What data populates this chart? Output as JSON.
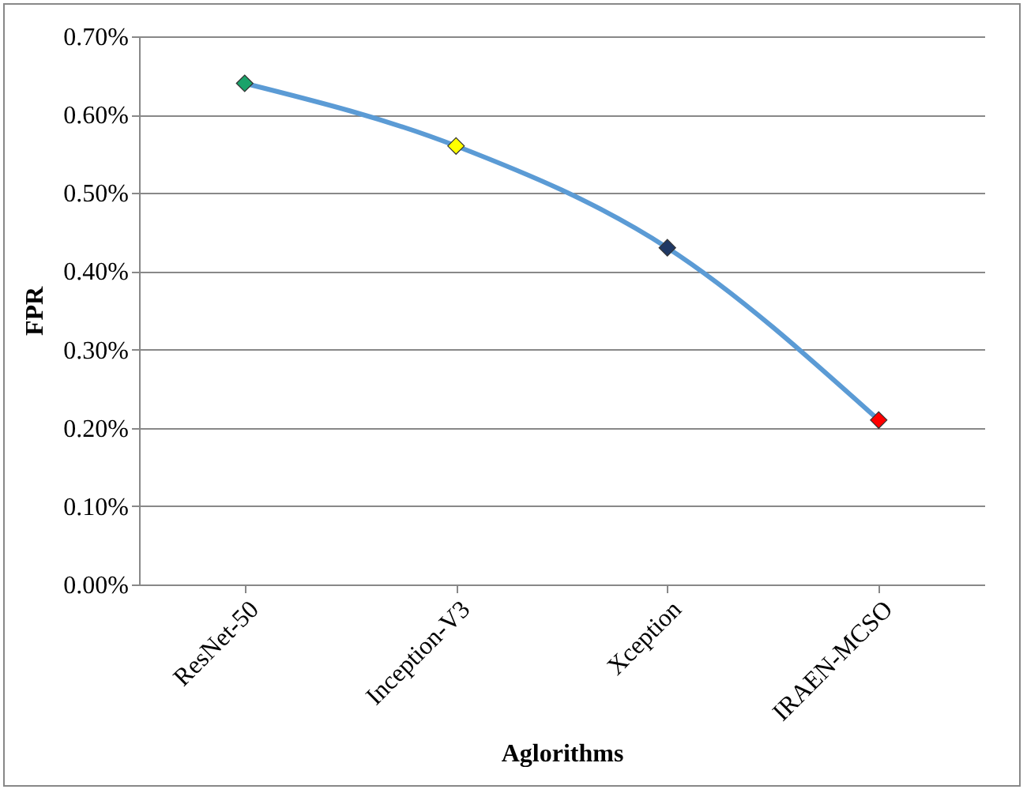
{
  "chart_data": {
    "type": "line",
    "xlabel": "Aglorithms",
    "ylabel": "FPR",
    "categories": [
      "ResNet-50",
      "Inception-V3",
      "Xception",
      "IRAEN-MCSO"
    ],
    "series": [
      {
        "color": "#5b9bd5",
        "colors": [
          "#1aa36a",
          "#ffff00",
          "#1f3864",
          "#ff0000"
        ],
        "values": [
          0.64,
          0.56,
          0.43,
          0.21
        ]
      }
    ],
    "ylim": [
      0,
      0.7
    ],
    "yticks": [
      {
        "value": 0,
        "label": "0.00%"
      },
      {
        "value": 0.1,
        "label": "0.10%"
      },
      {
        "value": 0.2,
        "label": "0.20%"
      },
      {
        "value": 0.3,
        "label": "0.30%"
      },
      {
        "value": 0.4,
        "label": "0.40%"
      },
      {
        "value": 0.5,
        "label": "0.50%"
      },
      {
        "value": 0.6,
        "label": "0.60%"
      },
      {
        "value": 0.7,
        "label": "0.70%"
      }
    ],
    "grid": "y",
    "legend": false,
    "marker": "diamond",
    "line_style": "solid"
  }
}
